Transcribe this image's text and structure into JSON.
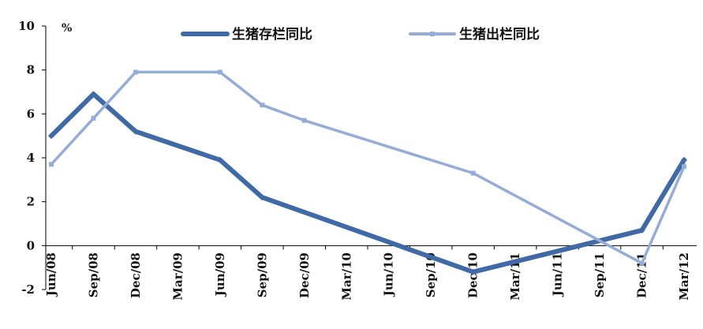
{
  "chart_data": {
    "type": "line",
    "title": "",
    "xlabel": "",
    "ylabel": "",
    "unit_label": "%",
    "categories": [
      "Jun/08",
      "Sep/08",
      "Dec/08",
      "Mar/09",
      "Jun/09",
      "Sep/09",
      "Dec/09",
      "Mar/10",
      "Jun/10",
      "Sep/10",
      "Dec/10",
      "Mar/11",
      "Jun/11",
      "Sep/11",
      "Dec/11",
      "Mar/12"
    ],
    "yticks": [
      -2,
      0,
      2,
      4,
      6,
      8,
      10
    ],
    "ylim": [
      -2,
      10
    ],
    "grid": false,
    "legend_position": "top",
    "series": [
      {
        "name": "生猪存栏同比",
        "color": "#3f6aa6",
        "values": [
          5.0,
          6.9,
          5.2,
          null,
          3.9,
          2.2,
          null,
          null,
          null,
          null,
          -1.2,
          null,
          null,
          null,
          0.7,
          3.9
        ]
      },
      {
        "name": "生猪出栏同比",
        "color": "#95acd6",
        "values": [
          3.7,
          5.8,
          7.9,
          null,
          7.9,
          6.4,
          5.7,
          null,
          null,
          null,
          3.3,
          null,
          null,
          null,
          -0.8,
          3.6
        ]
      }
    ]
  }
}
